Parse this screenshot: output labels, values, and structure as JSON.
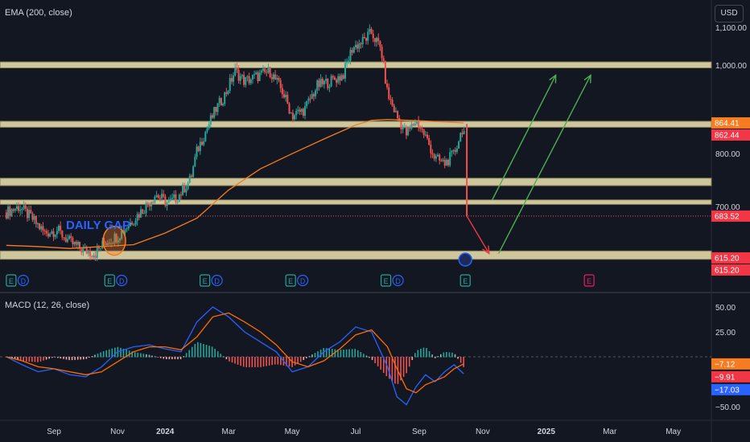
{
  "indicators": {
    "ema_label": "EMA (200, close)",
    "macd_label": "MACD (12, 26, close)",
    "currency": "USD"
  },
  "annotation": {
    "daily_gap": "DAILY GAP"
  },
  "colors": {
    "background": "#131722",
    "up": "#26a69a",
    "down": "#ef5350",
    "ema": "#f57c20",
    "zone_fill": "#f0e6b4",
    "zone_border": "#8a7f52",
    "gap_circle": "#f57c20",
    "gap_text": "#2962ff",
    "macd_line": "#2962ff",
    "signal_line": "#ff6d00",
    "up_arrow": "#4caf50",
    "down_arrow": "#f23645"
  },
  "price_axis": {
    "ticks": [
      {
        "value": 1100,
        "label": "1,100.00"
      },
      {
        "value": 1000,
        "label": "1,000.00"
      },
      {
        "value": 800,
        "label": "800.00"
      },
      {
        "value": 700,
        "label": "700.00"
      }
    ],
    "badges": [
      {
        "value": 864.41,
        "label": "864.41",
        "color": "#f57c20"
      },
      {
        "value": 862.44,
        "label": "862.44",
        "color": "#f23645"
      },
      {
        "value": 683.52,
        "label": "683.52",
        "color": "#f23645"
      },
      {
        "value": 615.2,
        "label": "615.20",
        "color": "#f23645"
      },
      {
        "value": 615.2,
        "label": "615.20",
        "color": "#f23645"
      }
    ]
  },
  "macd_axis": {
    "ticks": [
      {
        "value": 50,
        "label": "50.00"
      },
      {
        "value": 25,
        "label": "25.00"
      },
      {
        "value": -50,
        "label": "−50.00"
      }
    ],
    "badges": [
      {
        "value": -7.12,
        "label": "−7.12",
        "color": "#f57c20"
      },
      {
        "value": -9.91,
        "label": "−9.91",
        "color": "#f23645"
      },
      {
        "value": -17.03,
        "label": "−17.03",
        "color": "#2962ff"
      }
    ]
  },
  "time_axis": {
    "labels": [
      {
        "month": 1.5,
        "label": "Sep",
        "bold": false
      },
      {
        "month": 3.5,
        "label": "Nov",
        "bold": false
      },
      {
        "month": 5.0,
        "label": "2024",
        "bold": true
      },
      {
        "month": 7.0,
        "label": "Mar",
        "bold": false
      },
      {
        "month": 9.0,
        "label": "May",
        "bold": false
      },
      {
        "month": 11.0,
        "label": "Jul",
        "bold": false
      },
      {
        "month": 13.0,
        "label": "Sep",
        "bold": false
      },
      {
        "month": 15.0,
        "label": "Nov",
        "bold": false
      },
      {
        "month": 17.0,
        "label": "2025",
        "bold": true
      },
      {
        "month": 19.0,
        "label": "Mar",
        "bold": false
      },
      {
        "month": 21.0,
        "label": "May",
        "bold": false
      }
    ]
  },
  "events": [
    {
      "month": 0.0,
      "items": [
        "E",
        "D"
      ]
    },
    {
      "month": 3.1,
      "items": [
        "E",
        "D"
      ]
    },
    {
      "month": 6.1,
      "items": [
        "E",
        "D"
      ]
    },
    {
      "month": 8.8,
      "items": [
        "E",
        "D"
      ]
    },
    {
      "month": 11.8,
      "items": [
        "E",
        "D"
      ]
    },
    {
      "month": 14.3,
      "items": [
        "E"
      ]
    },
    {
      "month": 18.2,
      "items": [
        "E"
      ]
    }
  ],
  "chart_data": {
    "type": "candlestick",
    "price_scale": "log",
    "x_unit": "months from Aug 1, 2023",
    "x_range": [
      -0.2,
      22.2
    ],
    "price_range": [
      580,
      1150
    ],
    "macd_range": [
      -58,
      58
    ],
    "zones": [
      {
        "low": 993,
        "high": 1008
      },
      {
        "low": 855,
        "high": 868
      },
      {
        "low": 738,
        "high": 752
      },
      {
        "low": 704,
        "high": 712
      },
      {
        "low": 613,
        "high": 626
      }
    ],
    "current_price": 683.52,
    "price_path": [
      [
        0.0,
        690
      ],
      [
        0.4,
        700
      ],
      [
        0.8,
        680
      ],
      [
        1.2,
        655
      ],
      [
        1.6,
        660
      ],
      [
        2.0,
        640
      ],
      [
        2.4,
        628
      ],
      [
        2.8,
        622
      ],
      [
        3.1,
        640
      ],
      [
        3.5,
        650
      ],
      [
        3.9,
        672
      ],
      [
        4.3,
        695
      ],
      [
        4.7,
        722
      ],
      [
        5.1,
        705
      ],
      [
        5.4,
        718
      ],
      [
        5.8,
        750
      ],
      [
        6.0,
        805
      ],
      [
        6.3,
        850
      ],
      [
        6.6,
        895
      ],
      [
        6.9,
        930
      ],
      [
        7.2,
        985
      ],
      [
        7.5,
        960
      ],
      [
        7.9,
        972
      ],
      [
        8.3,
        985
      ],
      [
        8.7,
        935
      ],
      [
        9.0,
        880
      ],
      [
        9.4,
        895
      ],
      [
        9.8,
        950
      ],
      [
        10.2,
        960
      ],
      [
        10.6,
        975
      ],
      [
        10.9,
        1045
      ],
      [
        11.2,
        1060
      ],
      [
        11.5,
        1085
      ],
      [
        11.8,
        1040
      ],
      [
        12.0,
        930
      ],
      [
        12.3,
        878
      ],
      [
        12.6,
        840
      ],
      [
        12.9,
        870
      ],
      [
        13.2,
        835
      ],
      [
        13.5,
        790
      ],
      [
        13.8,
        780
      ],
      [
        14.1,
        800
      ],
      [
        14.3,
        840
      ],
      [
        14.4,
        862
      ],
      [
        14.5,
        683.52
      ]
    ],
    "ema_path": [
      [
        0.0,
        635
      ],
      [
        1.0,
        633
      ],
      [
        2.0,
        630
      ],
      [
        3.0,
        633
      ],
      [
        4.0,
        636
      ],
      [
        5.0,
        655
      ],
      [
        6.0,
        680
      ],
      [
        7.0,
        730
      ],
      [
        8.0,
        770
      ],
      [
        9.0,
        800
      ],
      [
        10.0,
        830
      ],
      [
        11.0,
        860
      ],
      [
        11.5,
        870
      ],
      [
        12.0,
        872
      ],
      [
        13.0,
        869
      ],
      [
        14.0,
        866
      ],
      [
        14.4,
        864.41
      ]
    ],
    "macd": {
      "macd_path": [
        [
          0.0,
          0
        ],
        [
          0.5,
          -8
        ],
        [
          1.0,
          -15
        ],
        [
          1.5,
          -12
        ],
        [
          2.0,
          -18
        ],
        [
          2.5,
          -20
        ],
        [
          3.0,
          -10
        ],
        [
          3.5,
          5
        ],
        [
          4.0,
          10
        ],
        [
          4.5,
          12
        ],
        [
          5.0,
          8
        ],
        [
          5.5,
          5
        ],
        [
          6.0,
          35
        ],
        [
          6.5,
          50
        ],
        [
          7.0,
          40
        ],
        [
          7.5,
          25
        ],
        [
          8.0,
          15
        ],
        [
          8.5,
          5
        ],
        [
          9.0,
          -15
        ],
        [
          9.5,
          -10
        ],
        [
          10.0,
          5
        ],
        [
          10.5,
          15
        ],
        [
          11.0,
          30
        ],
        [
          11.5,
          25
        ],
        [
          12.0,
          -10
        ],
        [
          12.3,
          -40
        ],
        [
          12.6,
          -48
        ],
        [
          12.9,
          -30
        ],
        [
          13.2,
          -18
        ],
        [
          13.5,
          -25
        ],
        [
          13.8,
          -15
        ],
        [
          14.1,
          -8
        ],
        [
          14.4,
          -17.03
        ]
      ],
      "signal_path": [
        [
          0.0,
          0
        ],
        [
          0.5,
          -4
        ],
        [
          1.0,
          -10
        ],
        [
          1.5,
          -12
        ],
        [
          2.0,
          -15
        ],
        [
          2.5,
          -18
        ],
        [
          3.0,
          -15
        ],
        [
          3.5,
          -5
        ],
        [
          4.0,
          5
        ],
        [
          4.5,
          10
        ],
        [
          5.0,
          10
        ],
        [
          5.5,
          7
        ],
        [
          6.0,
          20
        ],
        [
          6.5,
          40
        ],
        [
          7.0,
          44
        ],
        [
          7.5,
          35
        ],
        [
          8.0,
          25
        ],
        [
          8.5,
          12
        ],
        [
          9.0,
          -5
        ],
        [
          9.5,
          -10
        ],
        [
          10.0,
          -4
        ],
        [
          10.5,
          8
        ],
        [
          11.0,
          22
        ],
        [
          11.5,
          27
        ],
        [
          12.0,
          10
        ],
        [
          12.3,
          -12
        ],
        [
          12.6,
          -32
        ],
        [
          12.9,
          -36
        ],
        [
          13.2,
          -28
        ],
        [
          13.5,
          -24
        ],
        [
          13.8,
          -20
        ],
        [
          14.1,
          -12
        ],
        [
          14.4,
          -7.12
        ]
      ],
      "zero_line": 0,
      "histogram_last": -9.91
    },
    "projections": [
      {
        "kind": "down",
        "from": [
          14.5,
          683.52
        ],
        "to": [
          15.2,
          622
        ]
      },
      {
        "kind": "up",
        "from": [
          15.3,
          712
        ],
        "to": [
          17.3,
          975
        ]
      },
      {
        "kind": "up",
        "from": [
          15.5,
          622
        ],
        "to": [
          18.4,
          975
        ]
      }
    ],
    "daily_gap": {
      "month": 3.4,
      "price": 632
    }
  }
}
